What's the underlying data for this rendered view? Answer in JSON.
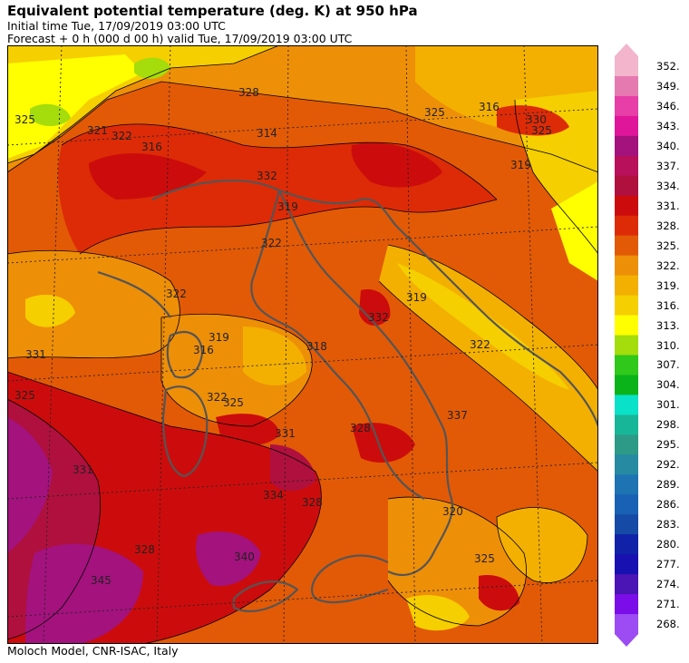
{
  "header": {
    "title": "Equivalent potential temperature (deg. K) at 950 hPa",
    "initial_time": "Initial time  Tue, 17/09/2019  03:00 UTC",
    "forecast": "Forecast  +   0 h  (000 d 00 h)  valid Tue, 17/09/2019 03:00 UTC"
  },
  "footer": {
    "credit": "Moloch Model, CNR-ISAC, Italy"
  },
  "colorbar": {
    "labels": [
      "352.",
      "349.",
      "346.",
      "343.",
      "340.",
      "337.",
      "334.",
      "331.",
      "328.",
      "325.",
      "322.",
      "319.",
      "316.",
      "313.",
      "310.",
      "307.",
      "304.",
      "301.",
      "298.",
      "295.",
      "292.",
      "289.",
      "286.",
      "283.",
      "280.",
      "277.",
      "274.",
      "271.",
      "268."
    ],
    "colors": [
      "#f2b5cc",
      "#e57ab0",
      "#e83ea7",
      "#e0169a",
      "#a3127d",
      "#b8105a",
      "#b0103e",
      "#cc0c0c",
      "#dd2b07",
      "#e25a06",
      "#ee8f08",
      "#f3b000",
      "#f5cf00",
      "#ffff00",
      "#a5dc0b",
      "#30c81a",
      "#0bb31a",
      "#09e1c8",
      "#18b698",
      "#2c9a87",
      "#268aa3",
      "#1e73b2",
      "#1861b4",
      "#154ba6",
      "#0f22a8",
      "#1910b2",
      "#4b14b4",
      "#7b0ee8",
      "#9c4cf2"
    ]
  },
  "contour_labels": [
    "325",
    "328",
    "321",
    "316",
    "322",
    "314",
    "332",
    "319",
    "322",
    "330",
    "325",
    "319",
    "325",
    "316",
    "319",
    "322",
    "331",
    "332",
    "322",
    "318",
    "316",
    "319",
    "325",
    "322",
    "325",
    "328",
    "331",
    "337",
    "334",
    "328",
    "331",
    "320",
    "325",
    "340",
    "328",
    "345"
  ],
  "map_colors": {
    "land_border": "#555555",
    "grid": "#222222",
    "contour": "#000000"
  }
}
